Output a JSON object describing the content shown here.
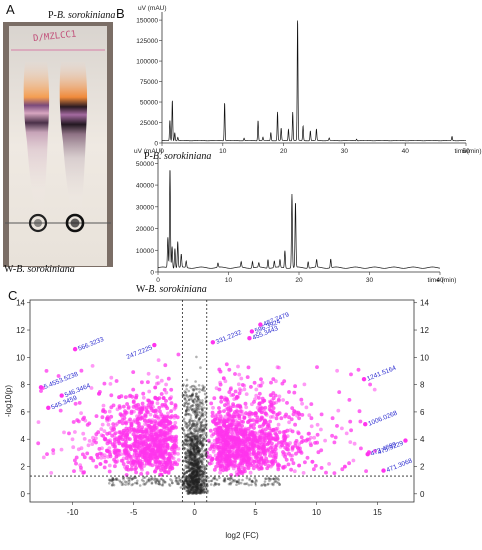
{
  "panels": {
    "a": {
      "letter": "A",
      "tlc_label": "D/MZLCC1",
      "top_caption_prefix": "P-",
      "top_caption_species": "B. sorokiniana",
      "bottom_caption_prefix": "W-",
      "bottom_caption_species": "B. sorokiniana"
    },
    "b": {
      "letter": "B"
    },
    "c": {
      "letter": "C"
    }
  },
  "chart_data": [
    {
      "type": "line",
      "panel": "B-top",
      "ylabel": "uV (mAU)",
      "xlabel": "time(min)",
      "xlim": [
        0,
        50
      ],
      "ylim": [
        0,
        155000
      ],
      "xticks": [
        0,
        10,
        20,
        30,
        40,
        50
      ],
      "yticks": [
        0,
        25000,
        50000,
        75000,
        100000,
        125000,
        150000
      ],
      "grid": false,
      "series": [
        {
          "name": "P-B. sorokiniana",
          "baseline": 3000,
          "peaks": [
            {
              "t": 1.3,
              "h": 25000
            },
            {
              "t": 1.7,
              "h": 50000
            },
            {
              "t": 2.1,
              "h": 10000
            },
            {
              "t": 2.6,
              "h": 4000
            },
            {
              "t": 10.3,
              "h": 47000
            },
            {
              "t": 13.5,
              "h": 3000
            },
            {
              "t": 15.8,
              "h": 25000
            },
            {
              "t": 16.6,
              "h": 4000
            },
            {
              "t": 17.9,
              "h": 10000
            },
            {
              "t": 19.0,
              "h": 35000
            },
            {
              "t": 19.6,
              "h": 15000
            },
            {
              "t": 20.8,
              "h": 14000
            },
            {
              "t": 21.5,
              "h": 35000
            },
            {
              "t": 22.3,
              "h": 150000
            },
            {
              "t": 23.2,
              "h": 18000
            },
            {
              "t": 24.4,
              "h": 12000
            },
            {
              "t": 25.4,
              "h": 14000
            },
            {
              "t": 27.5,
              "h": 3000
            },
            {
              "t": 32.0,
              "h": 2000
            },
            {
              "t": 47.7,
              "h": 5000
            }
          ]
        }
      ],
      "caption_prefix": "P-",
      "caption_species": "B. sorokiniana"
    },
    {
      "type": "line",
      "panel": "B-bottom",
      "ylabel": "uV (mAU)",
      "xlabel": "time (min)",
      "xlim": [
        0,
        40
      ],
      "ylim": [
        0,
        52000
      ],
      "xticks": [
        0,
        10,
        20,
        30,
        40
      ],
      "yticks": [
        0,
        10000,
        20000,
        30000,
        40000,
        50000
      ],
      "grid": false,
      "series": [
        {
          "name": "W-B. sorokiniana",
          "baseline": 2000,
          "peaks": [
            {
              "t": 1.4,
              "h": 14000
            },
            {
              "t": 1.7,
              "h": 46000
            },
            {
              "t": 2.0,
              "h": 10000
            },
            {
              "t": 2.4,
              "h": 9000
            },
            {
              "t": 2.8,
              "h": 12000
            },
            {
              "t": 3.3,
              "h": 6000
            },
            {
              "t": 4.0,
              "h": 3000
            },
            {
              "t": 8.5,
              "h": 2000
            },
            {
              "t": 11.8,
              "h": 2500
            },
            {
              "t": 13.4,
              "h": 3000
            },
            {
              "t": 14.3,
              "h": 2000
            },
            {
              "t": 15.6,
              "h": 4000
            },
            {
              "t": 16.5,
              "h": 3000
            },
            {
              "t": 17.3,
              "h": 3500
            },
            {
              "t": 18.0,
              "h": 8000
            },
            {
              "t": 19.0,
              "h": 34000
            },
            {
              "t": 19.5,
              "h": 30000
            },
            {
              "t": 21.3,
              "h": 3000
            },
            {
              "t": 22.5,
              "h": 3500
            },
            {
              "t": 24.5,
              "h": 4000
            }
          ]
        }
      ],
      "caption_prefix": "W-",
      "caption_species": "B. sorokiniana"
    },
    {
      "type": "scatter",
      "panel": "C",
      "xlabel": "log2 (FC)",
      "ylabel": "-log10(p)",
      "xlim": [
        -13.5,
        18
      ],
      "ylim": [
        -0.6,
        14.2
      ],
      "xticks": [
        -10,
        -5,
        0,
        5,
        10,
        15
      ],
      "yticks": [
        0,
        2,
        4,
        6,
        8,
        10,
        12,
        14
      ],
      "thresholds": {
        "log2fc": [
          -1,
          1
        ],
        "neglog10p": 1.3
      },
      "colors": {
        "significant": "#ff33ee",
        "nonsignificant": "#222222",
        "label": "#2a2ad0",
        "threshold": "#222222"
      },
      "grid": false,
      "labeled_points": [
        {
          "label": "487.7479",
          "x": 5.4,
          "y": 12.4
        },
        {
          "label": "596.3924",
          "x": 4.7,
          "y": 11.9
        },
        {
          "label": "455.3443",
          "x": 4.5,
          "y": 11.4
        },
        {
          "label": "331.2232",
          "x": 1.5,
          "y": 11.1
        },
        {
          "label": "247.2225",
          "x": -3.3,
          "y": 10.9
        },
        {
          "label": "566.3233",
          "x": -9.8,
          "y": 10.6
        },
        {
          "label": "1241.5164",
          "x": 13.9,
          "y": 8.4
        },
        {
          "label": "5.4553.5238",
          "x": -12.6,
          "y": 7.8
        },
        {
          "label": "546.3464",
          "x": -10.9,
          "y": 7.2
        },
        {
          "label": "545.3459",
          "x": -12.0,
          "y": 6.3
        },
        {
          "label": "1006.0268",
          "x": 14.0,
          "y": 5.1
        },
        {
          "label": "475.3229",
          "x": 17.3,
          "y": 3.9
        },
        {
          "label": "473.4889",
          "x": 14.2,
          "y": 2.9
        },
        {
          "label": "471.3068",
          "x": 15.5,
          "y": 1.7
        }
      ]
    }
  ]
}
